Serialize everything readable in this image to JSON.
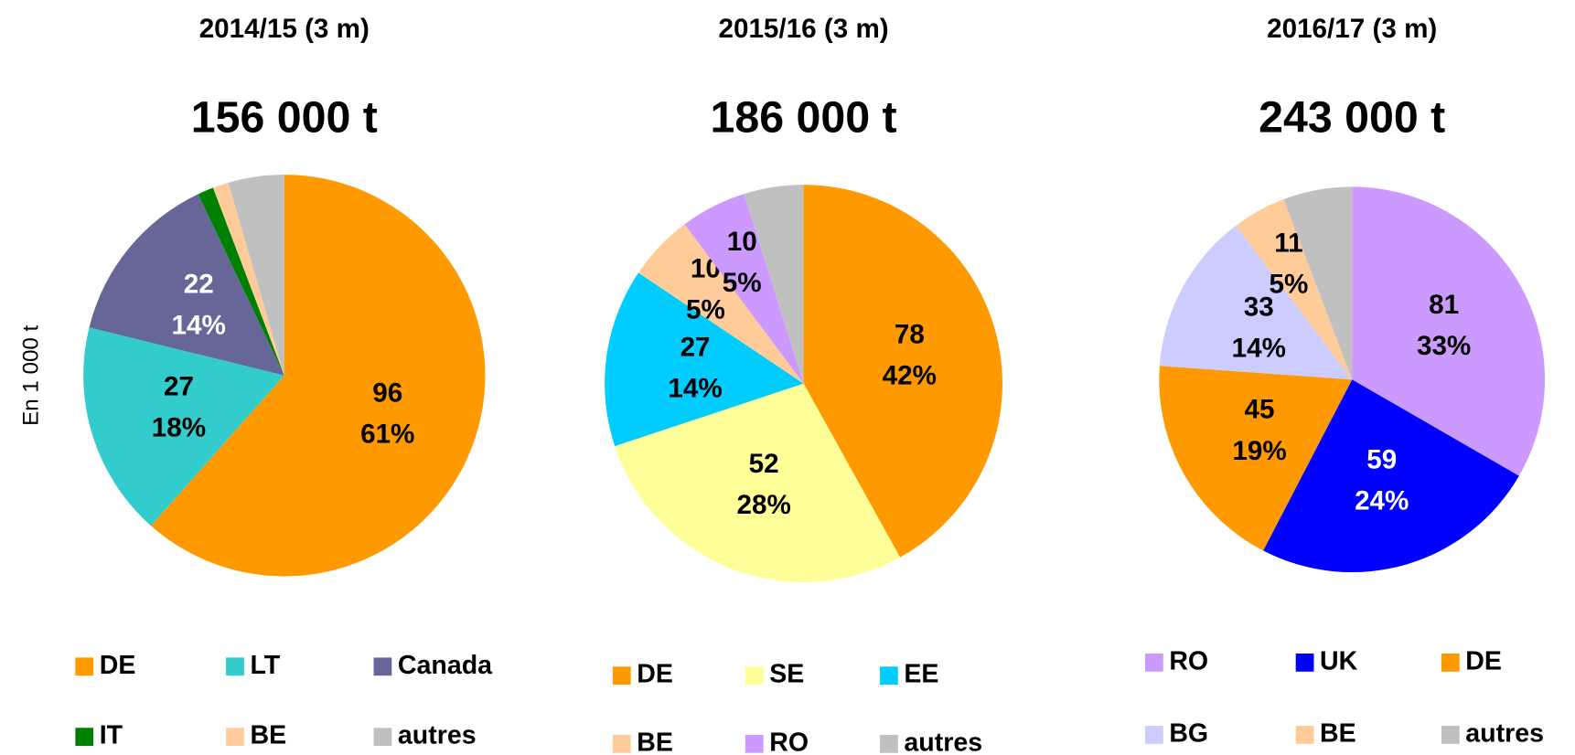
{
  "chart_data": [
    {
      "type": "pie",
      "title": "2014/15 (3 m)",
      "subtitle": "156 000 t",
      "ylabel": "En 1 000 t",
      "categories": [
        "DE",
        "LT",
        "Canada",
        "IT",
        "BE",
        "autres"
      ],
      "values": [
        96,
        27,
        22,
        2,
        2,
        7
      ],
      "percents": [
        61,
        18,
        14,
        null,
        null,
        null
      ],
      "percent_labels": [
        "61%",
        "18%",
        "14%",
        null,
        null,
        null
      ],
      "colors": [
        "#ff9900",
        "#33cccc",
        "#666699",
        "#008000",
        "#ffcc99",
        "#c0c0c0"
      ]
    },
    {
      "type": "pie",
      "title": "2015/16 (3 m)",
      "subtitle": "186 000 t",
      "categories": [
        "DE",
        "SE",
        "EE",
        "BE",
        "RO",
        "autres"
      ],
      "values": [
        78,
        52,
        27,
        10,
        10,
        9
      ],
      "percents": [
        42,
        28,
        14,
        5,
        5,
        null
      ],
      "percent_labels": [
        "42%",
        "28%",
        "14%",
        "5%",
        "5%",
        null
      ],
      "colors": [
        "#ff9900",
        "#ffff99",
        "#00ccff",
        "#ffcc99",
        "#cc99ff",
        "#c0c0c0"
      ]
    },
    {
      "type": "pie",
      "title": "2016/17 (3 m)",
      "subtitle": "243 000 t",
      "categories": [
        "RO",
        "UK",
        "DE",
        "BG",
        "BE",
        "autres"
      ],
      "values": [
        81,
        59,
        45,
        33,
        11,
        14
      ],
      "percents": [
        33,
        24,
        19,
        14,
        5,
        null
      ],
      "percent_labels": [
        "33%",
        "24%",
        "19%",
        "14%",
        "5%",
        null
      ],
      "colors": [
        "#cc99ff",
        "#0000ff",
        "#ff9900",
        "#ccccff",
        "#ffcc99",
        "#c0c0c0"
      ]
    }
  ]
}
